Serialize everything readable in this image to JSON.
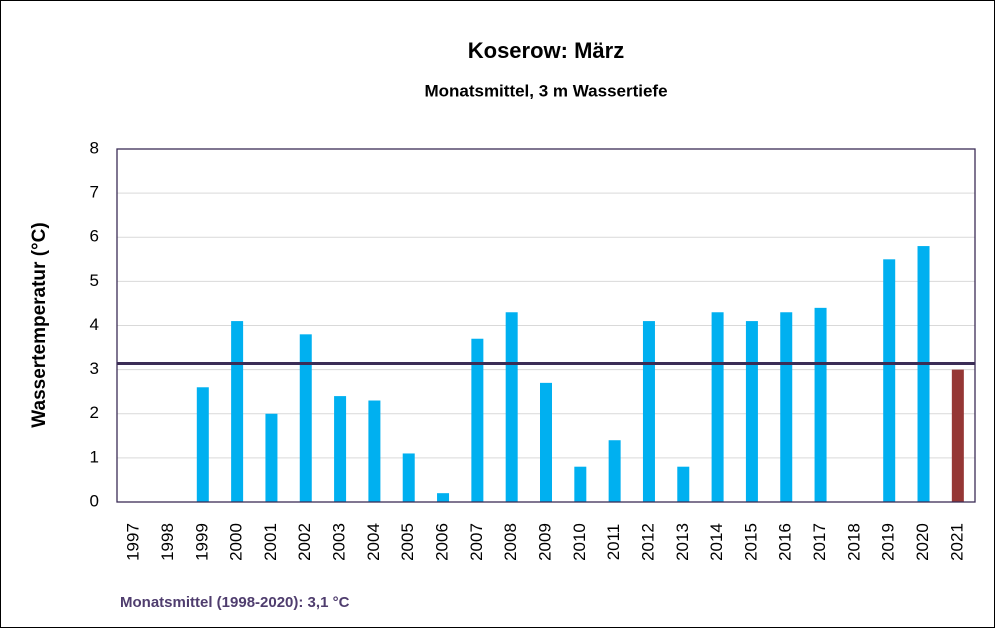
{
  "chart_data": {
    "type": "bar",
    "title": "Koserow: März",
    "subtitle": "Monatsmittel, 3 m Wassertiefe",
    "y_label": "Wassertemperatur (°C)",
    "annotation": "Monatsmittel (1998-2020): 3,1 °C",
    "categories": [
      "1997",
      "1998",
      "1999",
      "2000",
      "2001",
      "2002",
      "2003",
      "2004",
      "2005",
      "2006",
      "2007",
      "2008",
      "2009",
      "2010",
      "2011",
      "2012",
      "2013",
      "2014",
      "2015",
      "2016",
      "2017",
      "2018",
      "2019",
      "2020",
      "2021"
    ],
    "values": [
      null,
      null,
      2.6,
      4.1,
      2.0,
      3.8,
      2.4,
      2.3,
      1.1,
      0.2,
      3.7,
      4.3,
      2.7,
      0.8,
      1.4,
      4.1,
      0.8,
      4.3,
      4.1,
      4.3,
      4.4,
      null,
      5.5,
      5.8,
      3.0
    ],
    "colors": [
      "#00b0f0",
      "#00b0f0",
      "#00b0f0",
      "#00b0f0",
      "#00b0f0",
      "#00b0f0",
      "#00b0f0",
      "#00b0f0",
      "#00b0f0",
      "#00b0f0",
      "#00b0f0",
      "#00b0f0",
      "#00b0f0",
      "#00b0f0",
      "#00b0f0",
      "#00b0f0",
      "#00b0f0",
      "#00b0f0",
      "#00b0f0",
      "#00b0f0",
      "#00b0f0",
      "#00b0f0",
      "#00b0f0",
      "#00b0f0",
      "#953735"
    ],
    "mean_line": {
      "value": 3.14,
      "color": "#3b2d56"
    },
    "ylim": [
      0,
      8
    ],
    "yticks": [
      0,
      1,
      2,
      3,
      4,
      5,
      6,
      7,
      8
    ],
    "grid": true
  }
}
